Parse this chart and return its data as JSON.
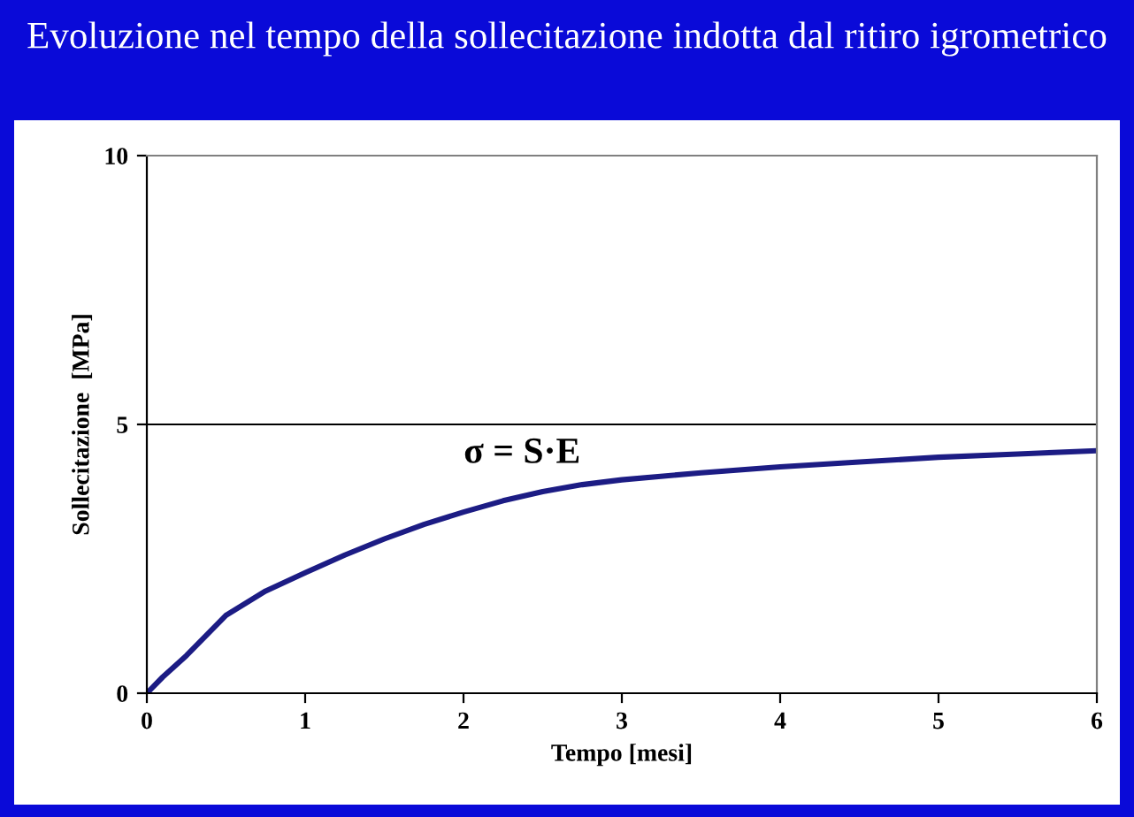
{
  "chart_data": {
    "type": "line",
    "title": "Evoluzione nel tempo della sollecitazione indotta dal ritiro igrometrico",
    "xlabel": "Tempo [mesi]",
    "ylabel": "Sollecitazione  [MPa]",
    "annotations": [
      "σ = S·E"
    ],
    "x": [
      0,
      0.1,
      0.25,
      0.5,
      0.75,
      1,
      1.25,
      1.5,
      1.75,
      2,
      2.25,
      2.5,
      2.75,
      3,
      3.5,
      4,
      4.5,
      5,
      5.5,
      6
    ],
    "series": [
      {
        "color": "#1c1c84",
        "values": [
          0,
          0.3,
          0.7,
          1.45,
          1.9,
          2.24,
          2.57,
          2.87,
          3.14,
          3.37,
          3.58,
          3.75,
          3.88,
          3.97,
          4.1,
          4.21,
          4.3,
          4.39,
          4.45,
          4.51
        ]
      }
    ],
    "xlim": [
      0,
      6
    ],
    "xticks": [
      0,
      1,
      2,
      3,
      4,
      5,
      6
    ],
    "ylim": [
      0,
      10
    ],
    "yticks": [
      0,
      5,
      10
    ],
    "grid": "y",
    "marker": "none",
    "line_style": "solid"
  }
}
